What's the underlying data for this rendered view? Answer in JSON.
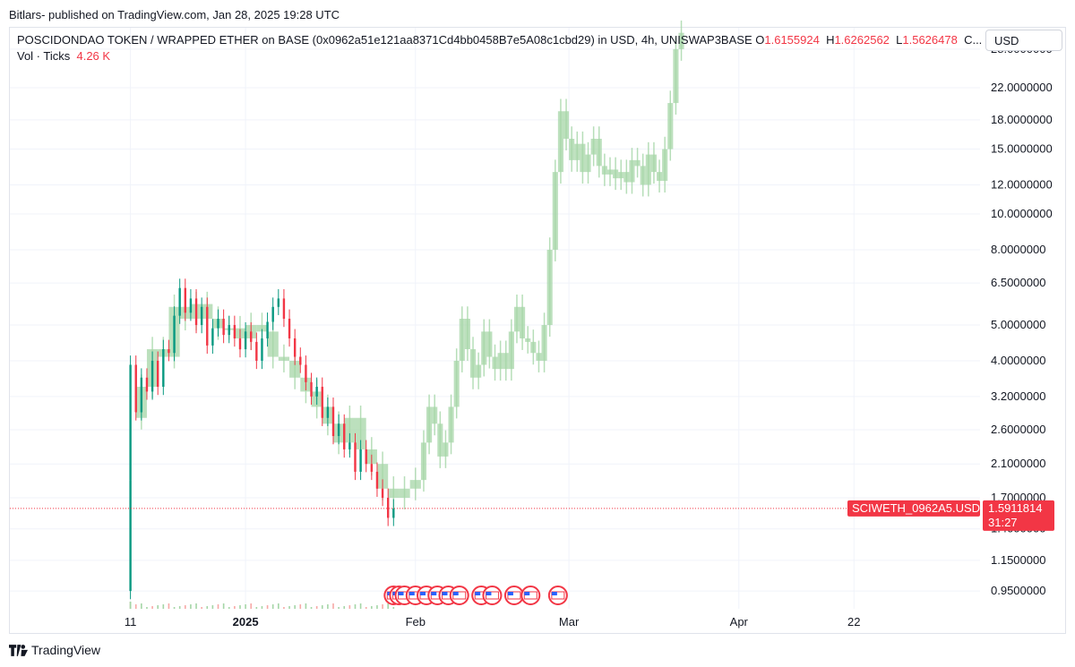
{
  "byline": "Bitlars- published on TradingView.com, Jan 28, 2025 19:28 UTC",
  "legend": {
    "title": "POSCIDONDAO TOKEN / WRAPPED ETHER on BASE (0x0962a51e121aa8371Cd4bb0458B7e5A08c1cbd29) in USD, 4h, UNISWAP3BASE",
    "o_label": "O",
    "o_value": "1.6155924",
    "h_label": "H",
    "h_value": "1.6262562",
    "l_label": "L",
    "l_value": "1.5626478",
    "c_label": "C..."
  },
  "volume": {
    "label": "Vol · Ticks",
    "value": "4.26 K"
  },
  "currency_button": "USD",
  "footer_brand": "TradingView",
  "colors": {
    "up": "#089981",
    "down": "#f23645",
    "projection": "#a5d6a7",
    "price_tag": "#f23645",
    "grid": "#f0f3fa"
  },
  "chart_data": {
    "type": "candlestick",
    "scale": "log",
    "y_ticks": [
      "28.0000000",
      "22.0000000",
      "18.0000000",
      "15.0000000",
      "12.0000000",
      "10.0000000",
      "8.0000000",
      "6.5000000",
      "5.0000000",
      "4.0000000",
      "3.2000000",
      "2.6000000",
      "2.1000000",
      "1.7000000",
      "1.4000000",
      "1.1500000",
      "0.9500000"
    ],
    "y_tick_values": [
      28,
      22,
      18,
      15,
      12,
      10,
      8,
      6.5,
      5,
      4,
      3.2,
      2.6,
      2.1,
      1.7,
      1.4,
      1.15,
      0.95
    ],
    "x_ticks": [
      "11",
      "2025",
      "Feb",
      "Mar",
      "Apr",
      "22"
    ],
    "x_tick_dates": [
      "2024-12-11",
      "2025-01-01",
      "2025-02-01",
      "2025-03-01",
      "2025-04-01",
      "2025-04-22"
    ],
    "ylim": [
      0.85,
      32
    ],
    "xlim": [
      "2024-11-19",
      "2025-05-15"
    ],
    "current_price": {
      "symbol": "SCIWETH_0962A5.USD",
      "value": "1.5911814",
      "countdown": "31:27",
      "price": 1.5911814
    },
    "actual_series": {
      "name": "price",
      "points": [
        [
          "2024-12-11",
          0.95
        ],
        [
          "2024-12-11",
          1.9
        ],
        [
          "2024-12-11",
          3.9
        ],
        [
          "2024-12-12",
          2.9
        ],
        [
          "2024-12-13",
          3.6
        ],
        [
          "2024-12-14",
          3.3
        ],
        [
          "2024-12-15",
          4.0
        ],
        [
          "2024-12-16",
          3.4
        ],
        [
          "2024-12-17",
          4.3
        ],
        [
          "2024-12-18",
          4.2
        ],
        [
          "2024-12-19",
          5.3
        ],
        [
          "2024-12-20",
          6.3
        ],
        [
          "2024-12-21",
          5.4
        ],
        [
          "2024-12-22",
          5.9
        ],
        [
          "2024-12-23",
          5.0
        ],
        [
          "2024-12-24",
          5.6
        ],
        [
          "2024-12-25",
          4.4
        ],
        [
          "2024-12-26",
          4.9
        ],
        [
          "2024-12-27",
          5.2
        ],
        [
          "2024-12-28",
          4.7
        ],
        [
          "2024-12-29",
          5.0
        ],
        [
          "2024-12-30",
          4.6
        ],
        [
          "2024-12-31",
          4.3
        ],
        [
          "2025-01-01",
          4.8
        ],
        [
          "2025-01-02",
          4.5
        ],
        [
          "2025-01-03",
          4.0
        ],
        [
          "2025-01-04",
          4.6
        ],
        [
          "2025-01-05",
          5.1
        ],
        [
          "2025-01-06",
          5.6
        ],
        [
          "2025-01-07",
          5.9
        ],
        [
          "2025-01-08",
          5.2
        ],
        [
          "2025-01-09",
          4.6
        ],
        [
          "2025-01-10",
          4.1
        ],
        [
          "2025-01-11",
          3.9
        ],
        [
          "2025-01-12",
          3.5
        ],
        [
          "2025-01-13",
          3.2
        ],
        [
          "2025-01-14",
          3.4
        ],
        [
          "2025-01-15",
          2.8
        ],
        [
          "2025-01-16",
          3.0
        ],
        [
          "2025-01-17",
          2.5
        ],
        [
          "2025-01-18",
          2.7
        ],
        [
          "2025-01-19",
          2.3
        ],
        [
          "2025-01-20",
          2.4
        ],
        [
          "2025-01-21",
          2.0
        ],
        [
          "2025-01-22",
          2.3
        ],
        [
          "2025-01-23",
          2.1
        ],
        [
          "2025-01-24",
          2.0
        ],
        [
          "2025-01-25",
          1.8
        ],
        [
          "2025-01-26",
          1.7
        ],
        [
          "2025-01-27",
          1.5
        ],
        [
          "2025-01-28",
          1.59
        ]
      ]
    },
    "projection_series": {
      "name": "",
      "points": [
        [
          "2024-12-12",
          2.8
        ],
        [
          "2024-12-14",
          3.4
        ],
        [
          "2024-12-16",
          4.3
        ],
        [
          "2024-12-18",
          4.1
        ],
        [
          "2024-12-20",
          5.6
        ],
        [
          "2024-12-22",
          5.2
        ],
        [
          "2024-12-24",
          5.7
        ],
        [
          "2024-12-26",
          5.2
        ],
        [
          "2024-12-28",
          4.9
        ],
        [
          "2024-12-30",
          4.9
        ],
        [
          "2025-01-01",
          4.6
        ],
        [
          "2025-01-03",
          5.0
        ],
        [
          "2025-01-05",
          4.8
        ],
        [
          "2025-01-07",
          4.1
        ],
        [
          "2025-01-09",
          4.0
        ],
        [
          "2025-01-11",
          3.6
        ],
        [
          "2025-01-13",
          3.3
        ],
        [
          "2025-01-15",
          3.0
        ],
        [
          "2025-01-17",
          2.7
        ],
        [
          "2025-01-19",
          2.4
        ],
        [
          "2025-01-21",
          2.8
        ],
        [
          "2025-01-23",
          2.3
        ],
        [
          "2025-01-25",
          2.1
        ],
        [
          "2025-01-27",
          1.8
        ],
        [
          "2025-01-29",
          1.7
        ],
        [
          "2025-01-31",
          1.8
        ],
        [
          "2025-02-02",
          1.9
        ],
        [
          "2025-02-03",
          2.4
        ],
        [
          "2025-02-04",
          3.0
        ],
        [
          "2025-02-05",
          2.7
        ],
        [
          "2025-02-06",
          2.2
        ],
        [
          "2025-02-07",
          2.4
        ],
        [
          "2025-02-08",
          3.0
        ],
        [
          "2025-02-09",
          4.0
        ],
        [
          "2025-02-10",
          5.2
        ],
        [
          "2025-02-11",
          4.3
        ],
        [
          "2025-02-12",
          3.6
        ],
        [
          "2025-02-13",
          3.9
        ],
        [
          "2025-02-14",
          4.8
        ],
        [
          "2025-02-15",
          4.1
        ],
        [
          "2025-02-16",
          3.8
        ],
        [
          "2025-02-17",
          4.2
        ],
        [
          "2025-02-18",
          3.8
        ],
        [
          "2025-02-19",
          4.8
        ],
        [
          "2025-02-20",
          5.6
        ],
        [
          "2025-02-21",
          4.6
        ],
        [
          "2025-02-22",
          4.5
        ],
        [
          "2025-02-23",
          4.2
        ],
        [
          "2025-02-24",
          4.0
        ],
        [
          "2025-02-25",
          5.0
        ],
        [
          "2025-02-26",
          8.0
        ],
        [
          "2025-02-27",
          13.0
        ],
        [
          "2025-02-28",
          19.0
        ],
        [
          "2025-03-01",
          16.0
        ],
        [
          "2025-03-02",
          14.0
        ],
        [
          "2025-03-03",
          15.5
        ],
        [
          "2025-03-04",
          13.0
        ],
        [
          "2025-03-05",
          14.5
        ],
        [
          "2025-03-06",
          16.0
        ],
        [
          "2025-03-07",
          13.5
        ],
        [
          "2025-03-08",
          12.8
        ],
        [
          "2025-03-09",
          13.2
        ],
        [
          "2025-03-10",
          12.5
        ],
        [
          "2025-03-11",
          13.0
        ],
        [
          "2025-03-12",
          12.2
        ],
        [
          "2025-03-13",
          14.0
        ],
        [
          "2025-03-14",
          13.5
        ],
        [
          "2025-03-15",
          12.0
        ],
        [
          "2025-03-16",
          14.5
        ],
        [
          "2025-03-17",
          13.0
        ],
        [
          "2025-03-18",
          12.3
        ],
        [
          "2025-03-19",
          15.0
        ],
        [
          "2025-03-20",
          20.0
        ],
        [
          "2025-03-21",
          28.0
        ],
        [
          "2025-03-22",
          31.0
        ]
      ]
    },
    "grid": true
  }
}
